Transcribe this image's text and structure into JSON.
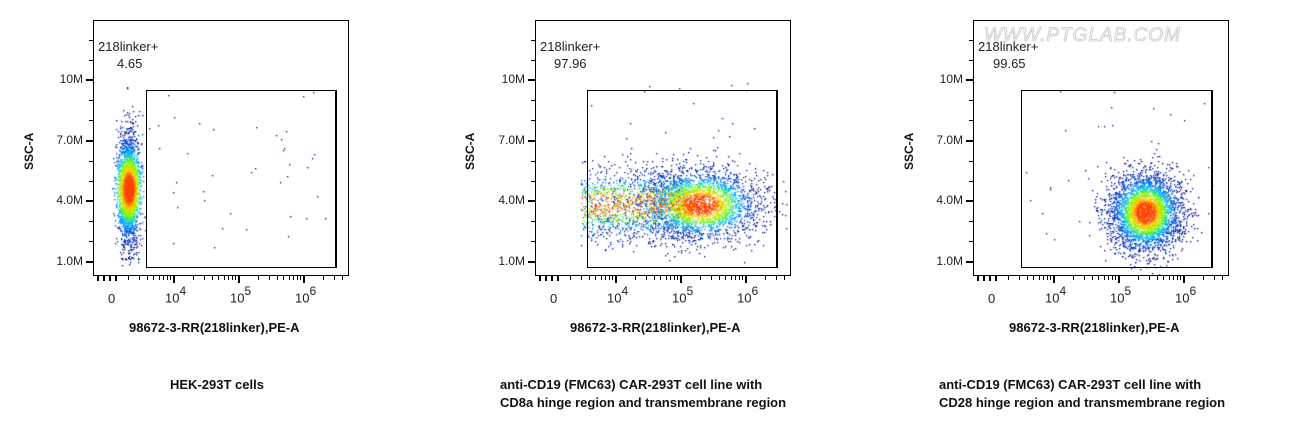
{
  "watermark": "WWW.PTGLAB.COM",
  "colors": {
    "axis": "#000000",
    "density_low": "#00008b",
    "density_mid": "#00bfff",
    "density_high": "#7fff00",
    "density_peak": "#ff4500"
  },
  "chart_data": [
    {
      "type": "scatter",
      "title": "",
      "xlabel": "98672-3-RR(218linker),PE-A",
      "ylabel": "SSC-A",
      "x_scale": "biexponential",
      "x_ticks": [
        "0",
        "10^4",
        "10^5",
        "10^6"
      ],
      "y_ticks": [
        "1.0M",
        "4.0M",
        "7.0M",
        "10M"
      ],
      "ylim": [
        0,
        13000000
      ],
      "gate": {
        "name": "218linker+",
        "percent": 4.65
      },
      "caption": "HEK-293T cells",
      "population": {
        "center_x_log": 2.3,
        "spread_x": 0.35,
        "center_y": 4500000,
        "spread_y": 1400000,
        "n": 2600
      }
    },
    {
      "type": "scatter",
      "title": "",
      "xlabel": "98672-3-RR(218linker),PE-A",
      "ylabel": "SSC-A",
      "x_scale": "biexponential",
      "x_ticks": [
        "0",
        "10^4",
        "10^5",
        "10^6"
      ],
      "y_ticks": [
        "1.0M",
        "4.0M",
        "7.0M",
        "10M"
      ],
      "ylim": [
        0,
        13000000
      ],
      "gate": {
        "name": "218linker+",
        "percent": 97.96
      },
      "caption": "anti-CD19 (FMC63) CAR-293T cell line with CD8a hinge region and transmembrane region",
      "population": {
        "center_x_log": 5.3,
        "spread_x": 0.45,
        "center_y": 3700000,
        "spread_y": 900000,
        "n": 4200
      }
    },
    {
      "type": "scatter",
      "title": "",
      "xlabel": "98672-3-RR(218linker),PE-A",
      "ylabel": "SSC-A",
      "x_scale": "biexponential",
      "x_ticks": [
        "0",
        "10^4",
        "10^5",
        "10^6"
      ],
      "y_ticks": [
        "1.0M",
        "4.0M",
        "7.0M",
        "10M"
      ],
      "ylim": [
        0,
        13000000
      ],
      "gate": {
        "name": "218linker+",
        "percent": 99.65
      },
      "caption": "anti-CD19 (FMC63) CAR-293T cell line with CD28 hinge region and transmembrane region",
      "population": {
        "center_x_log": 5.4,
        "spread_x": 0.28,
        "center_y": 3300000,
        "spread_y": 1000000,
        "n": 3600
      }
    }
  ],
  "panels": [
    {
      "gate_label": "218linker+",
      "gate_value": "4.65",
      "xlabel": "98672-3-RR(218linker),PE-A",
      "ylabel": "SSC-A",
      "caption_line1": "HEK-293T cells",
      "caption_line2": ""
    },
    {
      "gate_label": "218linker+",
      "gate_value": "97.96",
      "xlabel": "98672-3-RR(218linker),PE-A",
      "ylabel": "SSC-A",
      "caption_line1": "anti-CD19 (FMC63) CAR-293T cell line with",
      "caption_line2": "CD8a hinge region and transmembrane region"
    },
    {
      "gate_label": "218linker+",
      "gate_value": "99.65",
      "xlabel": "98672-3-RR(218linker),PE-A",
      "ylabel": "SSC-A",
      "caption_line1": "anti-CD19 (FMC63) CAR-293T cell line with",
      "caption_line2": "CD28 hinge region and transmembrane region"
    }
  ],
  "axis": {
    "y_ticks": [
      "10M",
      "7.0M",
      "4.0M",
      "1.0M"
    ],
    "x_zero": "0",
    "x_base": "10",
    "x_exps": [
      "4",
      "5",
      "6"
    ]
  }
}
